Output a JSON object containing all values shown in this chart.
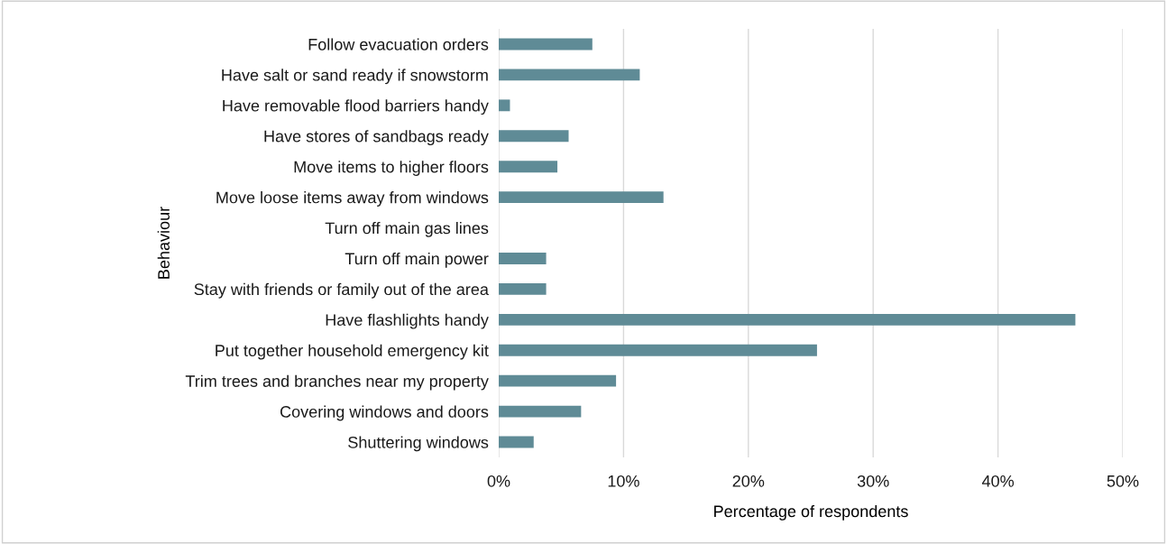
{
  "chart_data": {
    "type": "bar",
    "orientation": "horizontal",
    "xlabel": "Percentage of respondents",
    "ylabel": "Behaviour",
    "categories": [
      "Follow evacuation orders",
      "Have salt or sand ready if snowstorm",
      "Have removable flood barriers handy",
      "Have stores of sandbags ready",
      "Move items to higher floors",
      "Move loose items away from windows",
      "Turn off main gas lines",
      "Turn off main power",
      "Stay with friends or family out of the area",
      "Have flashlights handy",
      "Put together household emergency kit",
      "Trim trees and branches near my property",
      "Covering windows and doors",
      "Shuttering windows"
    ],
    "values": [
      7.5,
      11.3,
      0.9,
      5.6,
      4.7,
      13.2,
      0,
      3.8,
      3.8,
      46.2,
      25.5,
      9.4,
      6.6,
      2.8
    ],
    "color": "#5f8b96",
    "xlim": [
      0,
      50
    ],
    "xticks": [
      {
        "value": 0,
        "label": "0%"
      },
      {
        "value": 10,
        "label": "10%"
      },
      {
        "value": 20,
        "label": "20%"
      },
      {
        "value": 30,
        "label": "30%"
      },
      {
        "value": 40,
        "label": "40%"
      },
      {
        "value": 50,
        "label": "50%"
      }
    ],
    "grid": "x",
    "legend": false
  }
}
